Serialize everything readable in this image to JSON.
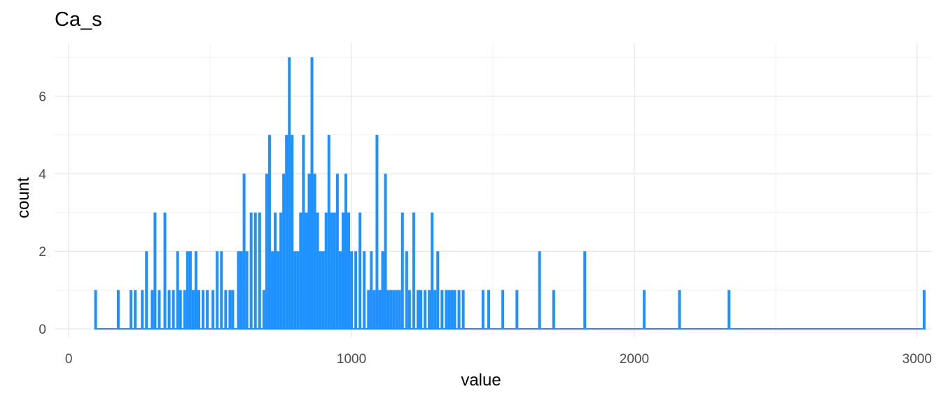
{
  "chart_data": {
    "type": "bar",
    "title": "Ca_s",
    "xlabel": "value",
    "ylabel": "count",
    "xlim": [
      -50,
      3050
    ],
    "ylim": [
      0,
      7
    ],
    "x_ticks": [
      0,
      1000,
      2000,
      3000
    ],
    "x_tick_labels": [
      "0",
      "1000",
      "2000",
      "3000"
    ],
    "y_ticks": [
      0,
      2,
      4,
      6
    ],
    "y_tick_labels": [
      "0",
      "2",
      "4",
      "6"
    ],
    "grid": true,
    "legend": "none",
    "bar_color": "#1E90FF",
    "bins": [
      {
        "x": 95,
        "count": 1
      },
      {
        "x": 175,
        "count": 1
      },
      {
        "x": 220,
        "count": 1
      },
      {
        "x": 235,
        "count": 1
      },
      {
        "x": 260,
        "count": 1
      },
      {
        "x": 275,
        "count": 2
      },
      {
        "x": 295,
        "count": 1
      },
      {
        "x": 305,
        "count": 3
      },
      {
        "x": 320,
        "count": 1
      },
      {
        "x": 340,
        "count": 3
      },
      {
        "x": 355,
        "count": 1
      },
      {
        "x": 370,
        "count": 1
      },
      {
        "x": 385,
        "count": 2
      },
      {
        "x": 395,
        "count": 1
      },
      {
        "x": 410,
        "count": 1
      },
      {
        "x": 420,
        "count": 2
      },
      {
        "x": 430,
        "count": 2
      },
      {
        "x": 440,
        "count": 1
      },
      {
        "x": 450,
        "count": 2
      },
      {
        "x": 460,
        "count": 1
      },
      {
        "x": 475,
        "count": 1
      },
      {
        "x": 490,
        "count": 1
      },
      {
        "x": 510,
        "count": 1
      },
      {
        "x": 525,
        "count": 2
      },
      {
        "x": 540,
        "count": 2
      },
      {
        "x": 555,
        "count": 1
      },
      {
        "x": 570,
        "count": 1
      },
      {
        "x": 580,
        "count": 1
      },
      {
        "x": 600,
        "count": 2
      },
      {
        "x": 610,
        "count": 2
      },
      {
        "x": 620,
        "count": 4
      },
      {
        "x": 630,
        "count": 2
      },
      {
        "x": 645,
        "count": 3
      },
      {
        "x": 660,
        "count": 3
      },
      {
        "x": 675,
        "count": 3
      },
      {
        "x": 690,
        "count": 1
      },
      {
        "x": 700,
        "count": 4
      },
      {
        "x": 710,
        "count": 5
      },
      {
        "x": 720,
        "count": 2
      },
      {
        "x": 730,
        "count": 3
      },
      {
        "x": 740,
        "count": 2
      },
      {
        "x": 750,
        "count": 3
      },
      {
        "x": 760,
        "count": 4
      },
      {
        "x": 770,
        "count": 5
      },
      {
        "x": 780,
        "count": 7
      },
      {
        "x": 790,
        "count": 5
      },
      {
        "x": 800,
        "count": 2
      },
      {
        "x": 810,
        "count": 2
      },
      {
        "x": 820,
        "count": 3
      },
      {
        "x": 830,
        "count": 5
      },
      {
        "x": 840,
        "count": 3
      },
      {
        "x": 850,
        "count": 4
      },
      {
        "x": 860,
        "count": 7
      },
      {
        "x": 870,
        "count": 4
      },
      {
        "x": 880,
        "count": 3
      },
      {
        "x": 890,
        "count": 2
      },
      {
        "x": 900,
        "count": 2
      },
      {
        "x": 910,
        "count": 3
      },
      {
        "x": 920,
        "count": 5
      },
      {
        "x": 930,
        "count": 3
      },
      {
        "x": 940,
        "count": 3
      },
      {
        "x": 950,
        "count": 4
      },
      {
        "x": 960,
        "count": 2
      },
      {
        "x": 970,
        "count": 3
      },
      {
        "x": 980,
        "count": 4
      },
      {
        "x": 990,
        "count": 3
      },
      {
        "x": 1000,
        "count": 2
      },
      {
        "x": 1015,
        "count": 2
      },
      {
        "x": 1030,
        "count": 3
      },
      {
        "x": 1045,
        "count": 2
      },
      {
        "x": 1060,
        "count": 1
      },
      {
        "x": 1070,
        "count": 2
      },
      {
        "x": 1080,
        "count": 1
      },
      {
        "x": 1090,
        "count": 5
      },
      {
        "x": 1100,
        "count": 1
      },
      {
        "x": 1110,
        "count": 2
      },
      {
        "x": 1120,
        "count": 4
      },
      {
        "x": 1130,
        "count": 1
      },
      {
        "x": 1140,
        "count": 1
      },
      {
        "x": 1150,
        "count": 1
      },
      {
        "x": 1160,
        "count": 1
      },
      {
        "x": 1170,
        "count": 1
      },
      {
        "x": 1180,
        "count": 3
      },
      {
        "x": 1195,
        "count": 2
      },
      {
        "x": 1205,
        "count": 1
      },
      {
        "x": 1220,
        "count": 3
      },
      {
        "x": 1235,
        "count": 1
      },
      {
        "x": 1245,
        "count": 1
      },
      {
        "x": 1260,
        "count": 1
      },
      {
        "x": 1275,
        "count": 1
      },
      {
        "x": 1285,
        "count": 3
      },
      {
        "x": 1295,
        "count": 1
      },
      {
        "x": 1305,
        "count": 2
      },
      {
        "x": 1320,
        "count": 1
      },
      {
        "x": 1335,
        "count": 1
      },
      {
        "x": 1345,
        "count": 1
      },
      {
        "x": 1355,
        "count": 1
      },
      {
        "x": 1365,
        "count": 1
      },
      {
        "x": 1380,
        "count": 1
      },
      {
        "x": 1395,
        "count": 1
      },
      {
        "x": 1465,
        "count": 1
      },
      {
        "x": 1485,
        "count": 1
      },
      {
        "x": 1535,
        "count": 1
      },
      {
        "x": 1585,
        "count": 1
      },
      {
        "x": 1665,
        "count": 2
      },
      {
        "x": 1715,
        "count": 1
      },
      {
        "x": 1825,
        "count": 2
      },
      {
        "x": 2035,
        "count": 1
      },
      {
        "x": 2160,
        "count": 1
      },
      {
        "x": 2335,
        "count": 1
      },
      {
        "x": 3025,
        "count": 1
      }
    ]
  }
}
